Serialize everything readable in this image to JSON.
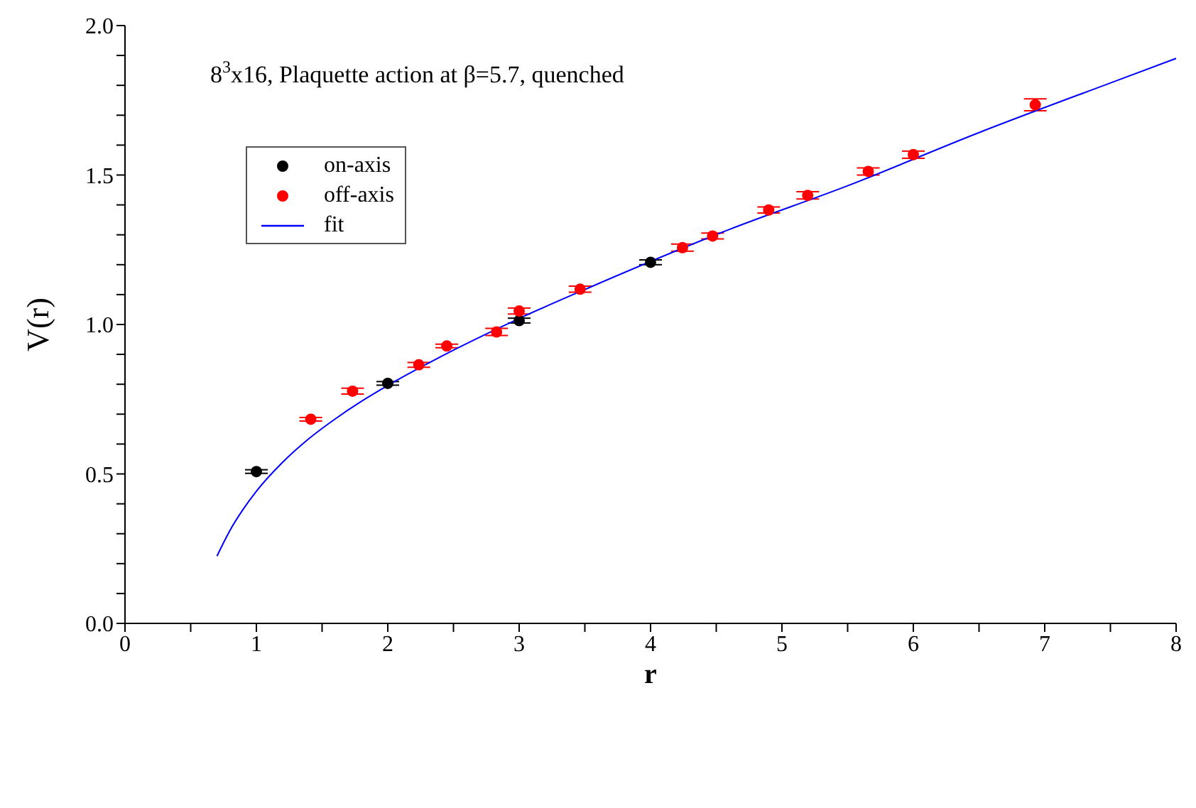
{
  "chart_data": {
    "type": "scatter",
    "title": "8$^{3}$x16, Plaquette action at β=5.7, quenched",
    "xlabel": "r",
    "ylabel": "V(r)",
    "xlim": [
      0,
      8
    ],
    "ylim": [
      0,
      2
    ],
    "xticks": [
      0,
      {
        "value": 0.5,
        "label": null
      },
      1,
      {
        "value": 1.5,
        "label": null
      },
      2,
      {
        "value": 2.5,
        "label": null
      },
      3,
      {
        "value": 3.5,
        "label": null
      },
      4,
      {
        "value": 4.5,
        "label": null
      },
      5,
      {
        "value": 5.5,
        "label": null
      },
      6,
      {
        "value": 6.5,
        "label": null
      },
      7,
      {
        "value": 7.5,
        "label": null
      },
      8
    ],
    "yticks": [
      {
        "value": 0,
        "label": "0.0"
      },
      {
        "value": 0.1,
        "label": null
      },
      {
        "value": 0.2,
        "label": null
      },
      {
        "value": 0.3,
        "label": null
      },
      {
        "value": 0.4,
        "label": null
      },
      0.5,
      {
        "value": 0.6,
        "label": null
      },
      {
        "value": 0.7,
        "label": null
      },
      {
        "value": 0.8,
        "label": null
      },
      {
        "value": 0.9,
        "label": null
      },
      {
        "value": 1,
        "label": "1.0"
      },
      {
        "value": 1.1,
        "label": null
      },
      {
        "value": 1.2,
        "label": null
      },
      {
        "value": 1.3,
        "label": null
      },
      {
        "value": 1.4,
        "label": null
      },
      1.5,
      {
        "value": 1.6,
        "label": null
      },
      {
        "value": 1.7,
        "label": null
      },
      {
        "value": 1.8,
        "label": null
      },
      {
        "value": 1.9,
        "label": null
      },
      {
        "value": 2,
        "label": "2.0"
      }
    ],
    "legend": "top left",
    "grid": false,
    "marker": "circle",
    "series": [
      {
        "name": "on-axis",
        "color": "#000000",
        "x": [
          1,
          2,
          3,
          4
        ],
        "values": [
          0.508,
          0.803,
          1.013,
          1.208
        ],
        "errors": [
          0.006,
          0.006,
          0.008,
          0.008
        ]
      },
      {
        "name": "off-axis",
        "color": "#ff0000",
        "x": [
          1.414,
          1.732,
          2.236,
          2.449,
          2.828,
          3,
          3.464,
          4.243,
          4.472,
          4.899,
          5.196,
          5.657,
          6,
          6.928
        ],
        "values": [
          0.683,
          0.777,
          0.865,
          0.928,
          0.975,
          1.045,
          1.118,
          1.257,
          1.296,
          1.383,
          1.432,
          1.512,
          1.568,
          1.735
        ],
        "errors": [
          0.006,
          0.01,
          0.008,
          0.006,
          0.012,
          0.01,
          0.01,
          0.012,
          0.01,
          0.01,
          0.012,
          0.012,
          0.012,
          0.02
        ]
      },
      {
        "name": "fit",
        "type": "line",
        "color": "#0000ff",
        "marker": "none",
        "x": [
          0.7,
          0.8,
          0.9,
          1,
          1.2,
          1.4,
          1.6,
          1.8,
          2,
          2.5,
          3,
          3.5,
          4.6,
          5.5,
          6.5,
          7.5,
          8
        ],
        "values": [
          0.225,
          0.312,
          0.382,
          0.442,
          0.539,
          0.618,
          0.684,
          0.743,
          0.796,
          0.914,
          1.02,
          1.117,
          1.318,
          1.464,
          1.642,
          1.808,
          1.89
        ]
      }
    ]
  }
}
